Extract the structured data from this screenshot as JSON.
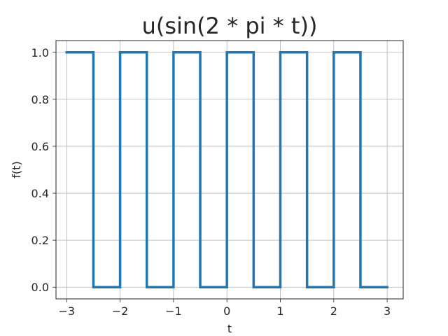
{
  "chart_data": {
    "type": "line",
    "title": "u(sin(2 * pi * t))",
    "xlabel": "t",
    "ylabel": "f(t)",
    "xlim": [
      -3.2,
      3.3
    ],
    "ylim": [
      -0.05,
      1.05
    ],
    "xticks": [
      -3,
      -2,
      -1,
      0,
      1,
      2,
      3
    ],
    "xtick_labels": [
      "−3",
      "−2",
      "−1",
      "0",
      "1",
      "2",
      "3"
    ],
    "yticks": [
      0.0,
      0.2,
      0.4,
      0.6,
      0.8,
      1.0
    ],
    "ytick_labels": [
      "0.0",
      "0.2",
      "0.4",
      "0.6",
      "0.8",
      "1.0"
    ],
    "grid": true,
    "series": [
      {
        "color": "#1f77b4",
        "x": [
          -3,
          -2.5,
          -2.5,
          -2,
          -2,
          -1.5,
          -1.5,
          -1,
          -1,
          -0.5,
          -0.5,
          0,
          0,
          0.5,
          0.5,
          1,
          1,
          1.5,
          1.5,
          2,
          2,
          2.5,
          2.5,
          3
        ],
        "y": [
          1,
          1,
          0,
          0,
          1,
          1,
          0,
          0,
          1,
          1,
          0,
          0,
          1,
          1,
          0,
          0,
          1,
          1,
          0,
          0,
          1,
          1,
          0,
          0
        ]
      }
    ]
  }
}
